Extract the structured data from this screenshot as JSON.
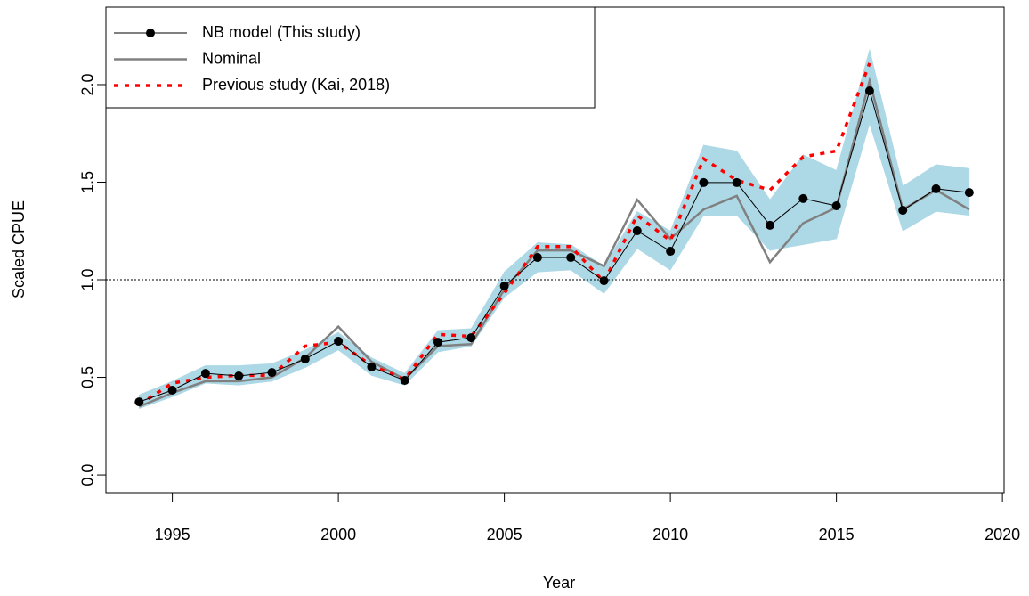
{
  "chart_data": {
    "type": "line",
    "x_label": "Year",
    "y_label": "Scaled CPUE",
    "x": [
      1994,
      1995,
      1996,
      1997,
      1998,
      1999,
      2000,
      2001,
      2002,
      2003,
      2004,
      2005,
      2006,
      2007,
      2008,
      2009,
      2010,
      2011,
      2012,
      2013,
      2014,
      2015,
      2016,
      2017,
      2018,
      2019
    ],
    "series": [
      {
        "name": "NB model (This study)",
        "color": "#000000",
        "markers": true,
        "line_width": 1,
        "line_style": "solid",
        "values": [
          0.374,
          0.434,
          0.52,
          0.507,
          0.525,
          0.594,
          0.685,
          0.553,
          0.484,
          0.68,
          0.703,
          0.968,
          1.114,
          1.114,
          0.995,
          1.251,
          1.146,
          1.498,
          1.498,
          1.279,
          1.416,
          1.379,
          1.968,
          1.356,
          1.466,
          1.447
        ]
      },
      {
        "name": "Nominal",
        "color": "#808080",
        "markers": false,
        "line_width": 2.5,
        "line_style": "solid",
        "values": [
          0.35,
          0.42,
          0.48,
          0.48,
          0.5,
          0.6,
          0.76,
          0.58,
          0.49,
          0.66,
          0.67,
          0.95,
          1.15,
          1.15,
          1.07,
          1.41,
          1.21,
          1.36,
          1.43,
          1.09,
          1.29,
          1.37,
          2.02,
          1.36,
          1.46,
          1.36
        ]
      },
      {
        "name": "Previous study (Kai, 2018)",
        "color": "#ff0000",
        "markers": false,
        "line_width": 3.5,
        "line_style": "dotted",
        "values": [
          0.36,
          0.47,
          0.5,
          0.51,
          0.51,
          0.66,
          0.68,
          0.56,
          0.49,
          0.72,
          0.71,
          0.93,
          1.17,
          1.17,
          0.99,
          1.33,
          1.2,
          1.62,
          1.51,
          1.46,
          1.63,
          1.66,
          2.11,
          null,
          null,
          null
        ]
      }
    ],
    "band": {
      "color": "#add8e6",
      "lower": [
        0.34,
        0.4,
        0.47,
        0.46,
        0.48,
        0.55,
        0.64,
        0.51,
        0.46,
        0.63,
        0.66,
        0.91,
        1.04,
        1.05,
        0.93,
        1.16,
        1.05,
        1.33,
        1.33,
        1.15,
        1.18,
        1.21,
        1.8,
        1.25,
        1.35,
        1.33
      ],
      "upper": [
        0.41,
        0.48,
        0.56,
        0.56,
        0.57,
        0.64,
        0.73,
        0.6,
        0.52,
        0.74,
        0.75,
        1.04,
        1.19,
        1.18,
        1.07,
        1.35,
        1.25,
        1.69,
        1.66,
        1.41,
        1.64,
        1.56,
        2.18,
        1.48,
        1.59,
        1.57
      ]
    },
    "hline": 1,
    "xlim": [
      1993,
      2020.05
    ],
    "ylim": [
      -0.091,
      2.397
    ],
    "xticks": [
      1995,
      2000,
      2005,
      2010,
      2015,
      2020
    ],
    "yticks": [
      {
        "value": 0,
        "label": "0.0"
      },
      {
        "value": 0.5,
        "label": "0.5"
      },
      {
        "value": 1,
        "label": "1.0"
      },
      {
        "value": 1.5,
        "label": "1.5"
      },
      {
        "value": 2,
        "label": "2.0"
      }
    ],
    "legend": "topleft"
  }
}
